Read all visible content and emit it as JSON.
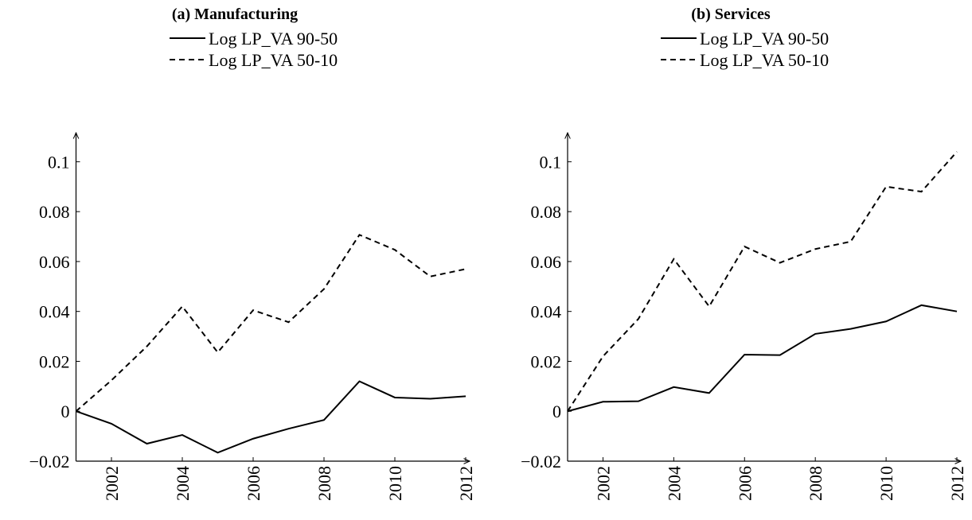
{
  "chart_data": [
    {
      "type": "line",
      "title": "(a) Manufacturing",
      "x": [
        2001,
        2002,
        2003,
        2004,
        2005,
        2006,
        2007,
        2008,
        2009,
        2010,
        2011,
        2012
      ],
      "series": [
        {
          "name": "Log LP_VA 90-50",
          "color": "#000000",
          "line_style": "solid",
          "values": [
            0,
            -0.005,
            -0.013,
            -0.0095,
            -0.0166,
            -0.011,
            -0.007,
            -0.0035,
            0.012,
            0.0055,
            0.005,
            0.006
          ]
        },
        {
          "name": "Log LP_VA 50-10",
          "color": "#000000",
          "line_style": "dashed",
          "values": [
            0,
            0.0124,
            0.026,
            0.042,
            0.0236,
            0.0405,
            0.0357,
            0.049,
            0.0707,
            0.0647,
            0.054,
            0.057
          ]
        }
      ],
      "xlim": [
        2001,
        2012
      ],
      "xticks": [
        2002,
        2004,
        2006,
        2008,
        2010,
        2012
      ],
      "ylim": [
        -0.02,
        0.11
      ],
      "yticks": [
        {
          "value": -0.02,
          "label": "−0.02"
        },
        0,
        0.02,
        0.04,
        0.06,
        0.08,
        0.1
      ],
      "grid": false
    },
    {
      "type": "line",
      "title": "(b) Services",
      "x": [
        2001,
        2002,
        2003,
        2004,
        2005,
        2006,
        2007,
        2008,
        2009,
        2010,
        2011,
        2012
      ],
      "series": [
        {
          "name": "Log LP_VA 90-50",
          "color": "#000000",
          "line_style": "solid",
          "values": [
            0,
            0.0038,
            0.004,
            0.0097,
            0.0073,
            0.0227,
            0.0225,
            0.031,
            0.033,
            0.036,
            0.0425,
            0.04
          ]
        },
        {
          "name": "Log LP_VA 50-10",
          "color": "#000000",
          "line_style": "dashed",
          "values": [
            0,
            0.022,
            0.037,
            0.061,
            0.042,
            0.066,
            0.0595,
            0.065,
            0.068,
            0.09,
            0.088,
            0.104
          ]
        }
      ],
      "xlim": [
        2001,
        2012
      ],
      "xticks": [
        2002,
        2004,
        2006,
        2008,
        2010,
        2012
      ],
      "ylim": [
        -0.02,
        0.11
      ],
      "yticks": [
        {
          "value": -0.02,
          "label": "−0.02"
        },
        0,
        0.02,
        0.04,
        0.06,
        0.08,
        0.1
      ],
      "grid": false
    }
  ]
}
